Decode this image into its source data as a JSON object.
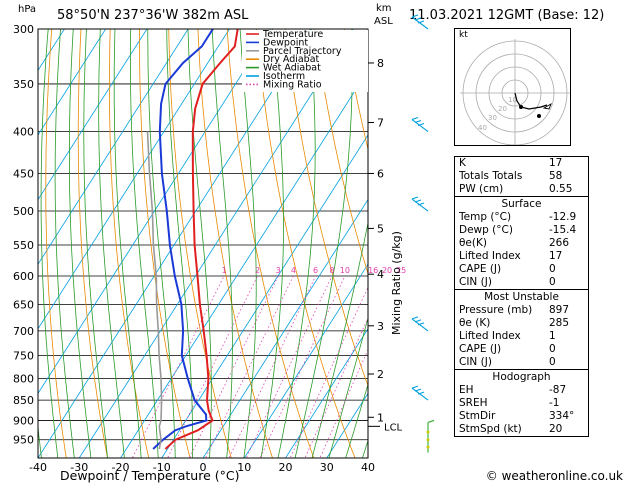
{
  "header": {
    "hpa_label": "hPa",
    "location": "58°50'N  237°36'W  382m  ASL",
    "km_label": "km",
    "asl_label": "ASL",
    "datetime": "11.03.2021  12GMT  (Base: 12)"
  },
  "chart_data": {
    "type": "line",
    "xlabel": "Dewpoint / Temperature (°C)",
    "ylabel": "hPa",
    "right_label": "Mixing Ratio (g/kg)",
    "xlim": [
      -40,
      40
    ],
    "ylim": [
      1000,
      300
    ],
    "x_ticks": [
      "-40",
      "-30",
      "-20",
      "-10",
      "0",
      "10",
      "20",
      "30",
      "40"
    ],
    "pressure_ticks": [
      "300",
      "350",
      "400",
      "450",
      "500",
      "550",
      "600",
      "650",
      "700",
      "750",
      "800",
      "850",
      "900",
      "950"
    ],
    "km_ticks": [
      {
        "km": "8",
        "p": 330
      },
      {
        "km": "7",
        "p": 390
      },
      {
        "km": "6",
        "p": 450
      },
      {
        "km": "5",
        "p": 525
      },
      {
        "km": "4",
        "p": 597
      },
      {
        "km": "3",
        "p": 690
      },
      {
        "km": "2",
        "p": 790
      },
      {
        "km": "1",
        "p": 892
      }
    ],
    "lcl": {
      "label": "LCL",
      "p": 915
    },
    "mixing_ratio_labels": [
      "1",
      "2",
      "3",
      "4",
      "6",
      "8",
      "10",
      "16",
      "20",
      "25"
    ],
    "mixing_ratio_values": [
      1,
      2,
      3,
      4,
      6,
      8,
      10,
      16,
      20,
      25
    ],
    "legend": [
      {
        "name": "Temperature",
        "color": "#e02020"
      },
      {
        "name": "Dewpoint",
        "color": "#1a3ad8"
      },
      {
        "name": "Parcel Trajectory",
        "color": "#999999"
      },
      {
        "name": "Dry Adiabat",
        "color": "#e88a00"
      },
      {
        "name": "Wet Adiabat",
        "color": "#2a9a2a"
      },
      {
        "name": "Isotherm",
        "color": "#00a0e0"
      },
      {
        "name": "Mixing Ratio",
        "color": "#e040b0"
      }
    ],
    "series": [
      {
        "name": "Temperature",
        "color": "#e02020",
        "points": [
          [
            975,
            -10.5
          ],
          [
            950,
            -9.5
          ],
          [
            925,
            -5.5
          ],
          [
            900,
            -3.5
          ],
          [
            875,
            -6
          ],
          [
            850,
            -8
          ],
          [
            800,
            -11
          ],
          [
            750,
            -15
          ],
          [
            700,
            -19.5
          ],
          [
            650,
            -24.5
          ],
          [
            600,
            -29.5
          ],
          [
            550,
            -35
          ],
          [
            500,
            -40.5
          ],
          [
            450,
            -46.5
          ],
          [
            400,
            -53
          ],
          [
            375,
            -56
          ],
          [
            350,
            -58
          ],
          [
            330,
            -57
          ],
          [
            315,
            -56
          ],
          [
            300,
            -58
          ]
        ]
      },
      {
        "name": "Dewpoint",
        "color": "#1a3ad8",
        "points": [
          [
            975,
            -13.5
          ],
          [
            950,
            -12.5
          ],
          [
            925,
            -11
          ],
          [
            915,
            -9
          ],
          [
            900,
            -5
          ],
          [
            885,
            -6
          ],
          [
            850,
            -11
          ],
          [
            800,
            -16
          ],
          [
            750,
            -21
          ],
          [
            700,
            -24.5
          ],
          [
            650,
            -29
          ],
          [
            600,
            -35
          ],
          [
            550,
            -41
          ],
          [
            500,
            -47
          ],
          [
            450,
            -54
          ],
          [
            400,
            -61
          ],
          [
            370,
            -65
          ],
          [
            350,
            -67
          ],
          [
            330,
            -66
          ],
          [
            315,
            -64
          ],
          [
            300,
            -64
          ]
        ]
      },
      {
        "name": "Parcel Trajectory",
        "color": "#999999",
        "points": [
          [
            975,
            -12
          ],
          [
            950,
            -13
          ],
          [
            915,
            -15.5
          ],
          [
            900,
            -16
          ],
          [
            850,
            -19
          ],
          [
            800,
            -22.5
          ],
          [
            750,
            -26.5
          ],
          [
            700,
            -30.5
          ],
          [
            650,
            -35
          ],
          [
            600,
            -39.5
          ],
          [
            550,
            -45
          ],
          [
            500,
            -50.5
          ],
          [
            450,
            -57
          ],
          [
            400,
            -64
          ]
        ]
      }
    ]
  },
  "hodograph": {
    "label": "kt",
    "ring_labels": [
      "10",
      "20",
      "30",
      "40"
    ]
  },
  "indices": {
    "rows": [
      {
        "k": "K",
        "v": "17"
      },
      {
        "k": "Totals Totals",
        "v": "58"
      },
      {
        "k": "PW (cm)",
        "v": "0.55"
      }
    ]
  },
  "surface": {
    "title": "Surface",
    "rows": [
      {
        "k": "Temp (°C)",
        "v": "-12.9"
      },
      {
        "k": "Dewp (°C)",
        "v": "-15.4"
      },
      {
        "k": "θe(K)",
        "v": "266"
      },
      {
        "k": "Lifted Index",
        "v": "17"
      },
      {
        "k": "CAPE (J)",
        "v": "0"
      },
      {
        "k": "CIN (J)",
        "v": "0"
      }
    ]
  },
  "most_unstable": {
    "title": "Most Unstable",
    "rows": [
      {
        "k": "Pressure (mb)",
        "v": "897"
      },
      {
        "k": "θe (K)",
        "v": "285"
      },
      {
        "k": "Lifted Index",
        "v": "1"
      },
      {
        "k": "CAPE (J)",
        "v": "0"
      },
      {
        "k": "CIN (J)",
        "v": "0"
      }
    ]
  },
  "hodo_table": {
    "title": "Hodograph",
    "rows": [
      {
        "k": "EH",
        "v": "-87"
      },
      {
        "k": "SREH",
        "v": "-1"
      },
      {
        "k": "StmDir",
        "v": "334°"
      },
      {
        "k": "StmSpd (kt)",
        "v": "20"
      }
    ]
  },
  "credit": "© weatheronline.co.uk"
}
